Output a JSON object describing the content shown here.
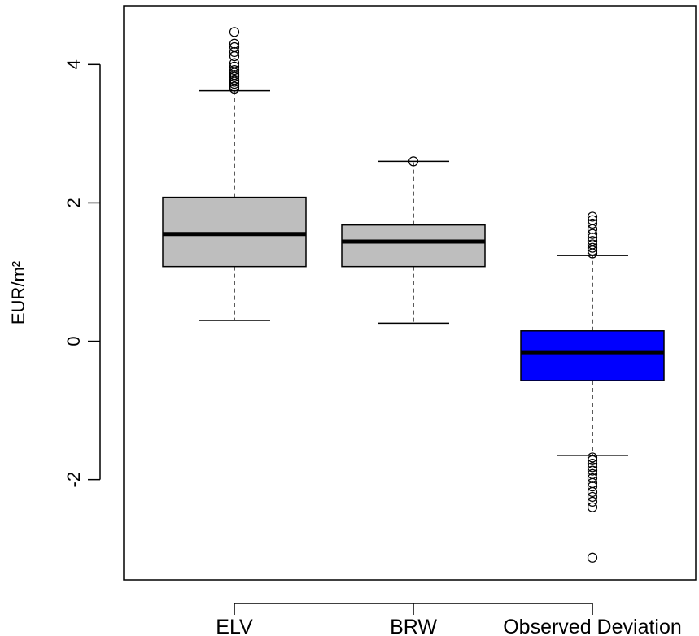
{
  "chart_data": {
    "type": "boxplot",
    "title": "",
    "xlabel": "",
    "ylabel": "EUR/m²",
    "ylim": [
      -3.45,
      4.85
    ],
    "yticks": [
      {
        "value": -2,
        "label": "-2"
      },
      {
        "value": 0,
        "label": "0"
      },
      {
        "value": 2,
        "label": "2"
      },
      {
        "value": 4,
        "label": "4"
      }
    ],
    "grid": false,
    "categories": [
      "ELV",
      "BRW",
      "Observed Deviation"
    ],
    "boxes": [
      {
        "category": "ELV",
        "color": "#bebebe",
        "whisker_low": 0.3,
        "q1": 1.08,
        "median": 1.55,
        "q3": 2.08,
        "whisker_high": 3.62,
        "outliers": [
          3.65,
          3.68,
          3.72,
          3.75,
          3.78,
          3.82,
          3.85,
          3.88,
          3.92,
          3.97,
          4.02,
          4.12,
          4.18,
          4.25,
          4.3,
          4.47
        ]
      },
      {
        "category": "BRW",
        "color": "#bebebe",
        "whisker_low": 0.26,
        "q1": 1.08,
        "median": 1.44,
        "q3": 1.68,
        "whisker_high": 2.6,
        "outliers": [
          2.6
        ]
      },
      {
        "category": "Observed Deviation",
        "color": "#0000ff",
        "whisker_low": -1.65,
        "q1": -0.57,
        "median": -0.16,
        "q3": 0.15,
        "whisker_high": 1.24,
        "outliers": [
          1.27,
          1.31,
          1.35,
          1.4,
          1.45,
          1.5,
          1.55,
          1.62,
          1.7,
          1.75,
          1.8,
          -1.68,
          -1.72,
          -1.77,
          -1.82,
          -1.87,
          -1.92,
          -1.98,
          -2.05,
          -2.1,
          -2.18,
          -2.25,
          -2.32,
          -2.4,
          -3.13
        ]
      }
    ]
  }
}
